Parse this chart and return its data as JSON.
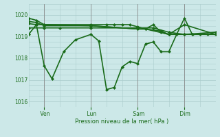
{
  "background_color": "#cce8e8",
  "grid_color": "#aacccc",
  "line_color": "#1a6b1a",
  "marker_color": "#1a6b1a",
  "xlabel": "Pression niveau de la mer( hPa )",
  "ylim": [
    1015.75,
    1020.5
  ],
  "yticks": [
    1016,
    1017,
    1018,
    1019,
    1020
  ],
  "x_tick_labels": [
    " Ven",
    " Lun",
    " Sam",
    " Dim"
  ],
  "x_tick_positions": [
    8,
    32,
    56,
    80
  ],
  "xlim": [
    0,
    96
  ],
  "figsize": [
    3.2,
    2.0
  ],
  "dpi": 100,
  "vlines": [
    8,
    32,
    56,
    80
  ],
  "series": [
    {
      "x": [
        0,
        4,
        8,
        12,
        18,
        24,
        32,
        36,
        40,
        44,
        48,
        52,
        56,
        60,
        64,
        68,
        72,
        76,
        80,
        84,
        88,
        92,
        96
      ],
      "y": [
        1019.1,
        1019.55,
        1017.65,
        1017.05,
        1018.3,
        1018.85,
        1019.1,
        1018.8,
        1016.55,
        1016.65,
        1017.6,
        1017.85,
        1017.75,
        1018.65,
        1018.75,
        1018.3,
        1018.3,
        1019.1,
        1019.85,
        1019.1,
        1019.1,
        1019.1,
        1019.1
      ],
      "lw": 1.2
    },
    {
      "x": [
        0,
        8,
        16,
        32,
        56,
        64,
        72,
        80,
        96
      ],
      "y": [
        1019.4,
        1019.4,
        1019.4,
        1019.4,
        1019.4,
        1019.4,
        1019.2,
        1019.1,
        1019.2
      ],
      "lw": 1.2
    },
    {
      "x": [
        0,
        4,
        8,
        32,
        40,
        44,
        48,
        52,
        56,
        60,
        64,
        68,
        72,
        80,
        84,
        96
      ],
      "y": [
        1019.6,
        1019.55,
        1019.55,
        1019.55,
        1019.55,
        1019.55,
        1019.55,
        1019.55,
        1019.45,
        1019.35,
        1019.55,
        1019.2,
        1019.1,
        1019.1,
        1019.1,
        1019.1
      ],
      "lw": 1.2
    },
    {
      "x": [
        0,
        4,
        8,
        32,
        56,
        60,
        68,
        72,
        80,
        84,
        96
      ],
      "y": [
        1019.7,
        1019.65,
        1019.5,
        1019.5,
        1019.35,
        1019.35,
        1019.25,
        1019.1,
        1019.1,
        1019.1,
        1019.1
      ],
      "lw": 1.2
    },
    {
      "x": [
        0,
        4,
        8,
        32,
        56,
        60,
        72,
        80,
        96
      ],
      "y": [
        1019.85,
        1019.75,
        1019.55,
        1019.5,
        1019.35,
        1019.35,
        1019.1,
        1019.55,
        1019.1
      ],
      "lw": 1.2
    }
  ]
}
